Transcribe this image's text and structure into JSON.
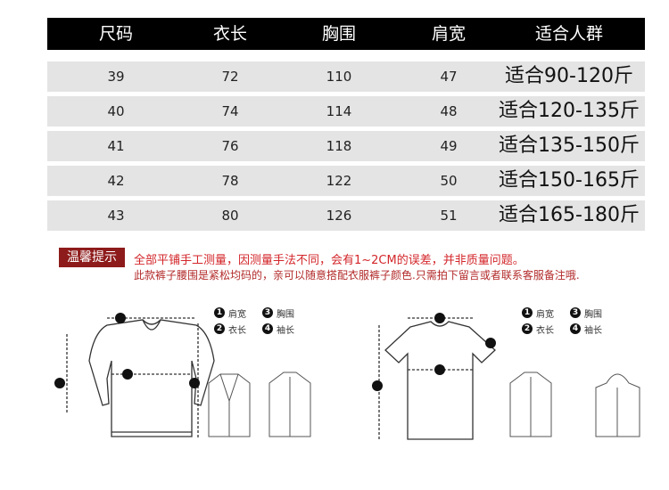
{
  "table": {
    "headers": [
      "尺码",
      "衣长",
      "胸围",
      "肩宽",
      "适合人群"
    ],
    "rows": [
      [
        "39",
        "72",
        "110",
        "47",
        "适合90-120斤"
      ],
      [
        "40",
        "74",
        "114",
        "48",
        "适合120-135斤"
      ],
      [
        "41",
        "76",
        "118",
        "49",
        "适合135-150斤"
      ],
      [
        "42",
        "78",
        "122",
        "50",
        "适合150-165斤"
      ],
      [
        "43",
        "80",
        "126",
        "51",
        "适合165-180斤"
      ]
    ]
  },
  "notice": {
    "label": "温馨提示",
    "line1": "全部平铺手工测量，因测量手法不同，会有1~2CM的误差，并非质量问题。",
    "line2": "此款裤子腰围是紧松均码的，亲可以随意搭配衣服裤子颜色.只需拍下留言或者联系客服备注哦.",
    "label_color": "#8e1b1b",
    "text_color": "#d3262a"
  },
  "legend": [
    {
      "num": "1",
      "label": "肩宽"
    },
    {
      "num": "3",
      "label": "胸围"
    },
    {
      "num": "2",
      "label": "衣长"
    },
    {
      "num": "4",
      "label": "袖长"
    }
  ]
}
